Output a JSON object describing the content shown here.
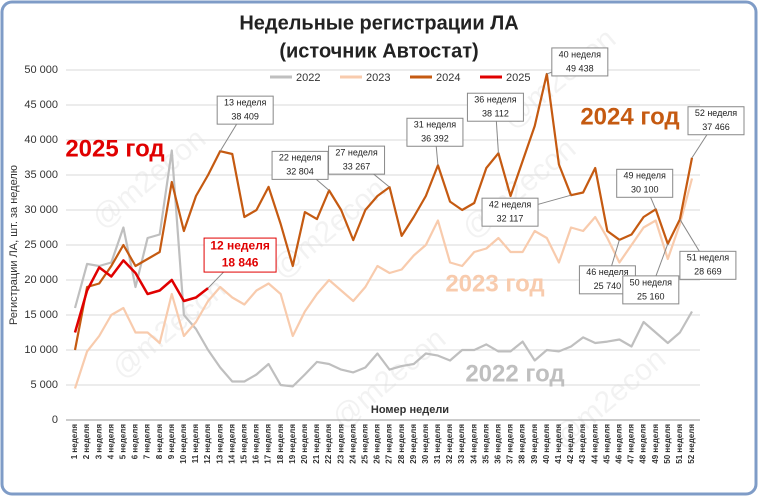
{
  "chart_data": {
    "type": "line",
    "title": "Недельные регистрации ЛА",
    "subtitle": "(источник Автостат)",
    "y_label": "Регистрации ЛА, шт. за неделю",
    "x_label": "Номер недели",
    "watermark": "@m2econ",
    "categories": [
      "1 неделя",
      "2 неделя",
      "3 неделя",
      "4 неделя",
      "5 неделя",
      "6 неделя",
      "7 неделя",
      "8 неделя",
      "9 неделя",
      "10 неделя",
      "11 неделя",
      "12 неделя",
      "13 неделя",
      "14 неделя",
      "15 неделя",
      "16 неделя",
      "17 неделя",
      "18 неделя",
      "19 неделя",
      "20 неделя",
      "21 неделя",
      "22 неделя",
      "23 неделя",
      "24 неделя",
      "25 неделя",
      "26 неделя",
      "27 неделя",
      "28 неделя",
      "29 неделя",
      "30 неделя",
      "31 неделя",
      "32 неделя",
      "33 неделя",
      "34 неделя",
      "35 неделя",
      "36 неделя",
      "37 неделя",
      "38 неделя",
      "39 неделя",
      "40 неделя",
      "41 неделя",
      "42 неделя",
      "43 неделя",
      "44 неделя",
      "45 неделя",
      "46 неделя",
      "47 неделя",
      "48 неделя",
      "49 неделя",
      "50 неделя",
      "51 неделя",
      "52 неделя"
    ],
    "ylim": [
      0,
      50000
    ],
    "yticks": [
      {
        "value": 0,
        "label": "0"
      },
      {
        "value": 5000,
        "label": "5 000"
      },
      {
        "value": 10000,
        "label": "10 000"
      },
      {
        "value": 15000,
        "label": "15 000"
      },
      {
        "value": 20000,
        "label": "20 000"
      },
      {
        "value": 25000,
        "label": "25 000"
      },
      {
        "value": 30000,
        "label": "30 000"
      },
      {
        "value": 35000,
        "label": "35 000"
      },
      {
        "value": 40000,
        "label": "40 000"
      },
      {
        "value": 45000,
        "label": "45 000"
      },
      {
        "value": 50000,
        "label": "50 000"
      }
    ],
    "grid": true,
    "legend": "top",
    "series": [
      {
        "name": "2022",
        "color": "#bfbfbf",
        "big_label": "2022 год",
        "values": [
          16000,
          22300,
          22000,
          22500,
          27500,
          19000,
          26000,
          26500,
          38500,
          15000,
          13000,
          10000,
          7500,
          5500,
          5500,
          6500,
          8000,
          5000,
          4800,
          6500,
          8300,
          8000,
          7200,
          6800,
          7500,
          9500,
          7200,
          7700,
          8000,
          9500,
          9200,
          8500,
          10000,
          10000,
          10800,
          9800,
          9800,
          11200,
          8500,
          10000,
          9800,
          10500,
          11800,
          11000,
          11200,
          11500,
          10500,
          14000,
          12500,
          11000,
          12500,
          15500
        ]
      },
      {
        "name": "2023",
        "color": "#f8cbad",
        "big_label": "2023 год",
        "values": [
          4500,
          9800,
          12000,
          15000,
          16000,
          12500,
          12500,
          11000,
          18000,
          12000,
          14000,
          17000,
          19000,
          17500,
          16500,
          18500,
          19500,
          18000,
          12000,
          15500,
          18000,
          20000,
          18500,
          17000,
          19000,
          22000,
          21000,
          21500,
          23500,
          25000,
          28500,
          22500,
          22000,
          24000,
          24500,
          26000,
          24000,
          24000,
          27000,
          26000,
          22500,
          27500,
          27000,
          29000,
          26000,
          22500,
          25000,
          27500,
          28500,
          23000,
          28000,
          34500
        ]
      },
      {
        "name": "2024",
        "color": "#c55a11",
        "big_label": "2024 год",
        "values": [
          10000,
          19000,
          19500,
          22000,
          25000,
          22000,
          23000,
          24000,
          34000,
          27000,
          32000,
          35000,
          38409,
          38000,
          29000,
          30000,
          33300,
          28000,
          22000,
          29700,
          28700,
          32804,
          30000,
          25700,
          30000,
          32000,
          33267,
          26300,
          29000,
          32000,
          36392,
          31200,
          30000,
          31000,
          36000,
          38112,
          32000,
          37000,
          42000,
          49438,
          36500,
          32117,
          32500,
          36000,
          27000,
          25740,
          26500,
          29000,
          30100,
          25160,
          28669,
          37466
        ],
        "value_labels": [
          null,
          null,
          null,
          null,
          null,
          null,
          null,
          null,
          null,
          null,
          null,
          null,
          "38 409",
          null,
          null,
          null,
          null,
          null,
          null,
          null,
          null,
          "32 804",
          null,
          null,
          null,
          null,
          "33 267",
          null,
          null,
          null,
          "36 392",
          null,
          null,
          null,
          null,
          "38 112",
          null,
          null,
          null,
          "49 438",
          null,
          "32 117",
          null,
          null,
          null,
          "25 740",
          null,
          null,
          "30 100",
          "25 160",
          "28 669",
          "37 466"
        ]
      },
      {
        "name": "2025",
        "color": "#e00000",
        "big_label": "2025 год",
        "values": [
          12500,
          18500,
          21800,
          20500,
          22800,
          21000,
          18000,
          18500,
          20000,
          17000,
          17500,
          18846,
          null,
          null,
          null,
          null,
          null,
          null,
          null,
          null,
          null,
          null,
          null,
          null,
          null,
          null,
          null,
          null,
          null,
          null,
          null,
          null,
          null,
          null,
          null,
          null,
          null,
          null,
          null,
          null,
          null,
          null,
          null,
          null,
          null,
          null,
          null,
          null,
          null,
          null,
          null,
          null
        ],
        "value_labels": [
          null,
          null,
          null,
          null,
          null,
          null,
          null,
          null,
          null,
          null,
          null,
          "18 846",
          null,
          null,
          null,
          null,
          null,
          null,
          null,
          null,
          null,
          null,
          null,
          null,
          null,
          null,
          null,
          null,
          null,
          null,
          null,
          null,
          null,
          null,
          null,
          null,
          null,
          null,
          null,
          null,
          null,
          null,
          null,
          null,
          null,
          null,
          null,
          null,
          null,
          null,
          null,
          null
        ]
      }
    ]
  }
}
